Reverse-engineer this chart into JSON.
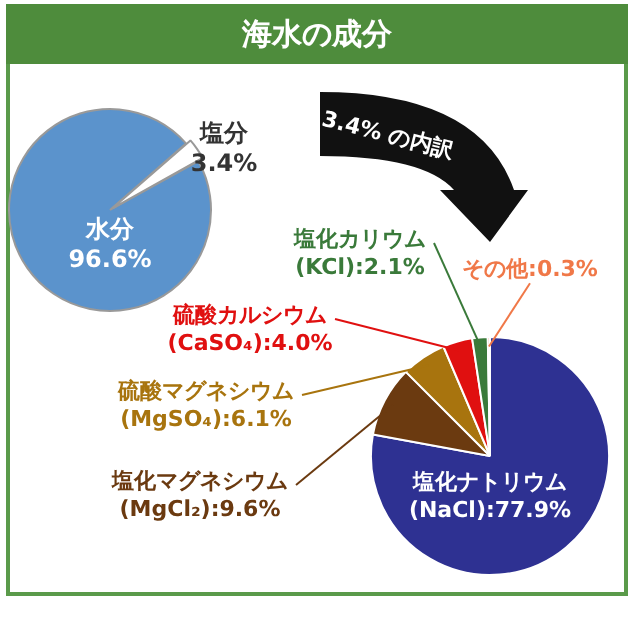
{
  "chart_data": [
    {
      "type": "pie",
      "title": "海水の成分",
      "categories": [
        "水分",
        "塩分"
      ],
      "values": [
        96.6,
        3.4
      ],
      "colors": [
        "#5b93cc",
        "#ffffff"
      ],
      "value_labels": [
        "96.6%",
        "3.4%"
      ]
    },
    {
      "type": "pie",
      "annotations": [
        "3.4% の内訳"
      ],
      "categories": [
        "塩化ナトリウム\n(NaCl)",
        "塩化マグネシウム\n(MgCl₂)",
        "硫酸マグネシウム\n(MgSO₄)",
        "硫酸カルシウム\n(CaSO₄)",
        "塩化カリウム\n(KCl)",
        "その他"
      ],
      "values": [
        77.9,
        9.6,
        6.1,
        4.0,
        2.1,
        0.3
      ],
      "colors": [
        "#2e3192",
        "#6b3a10",
        "#a8740e",
        "#e01010",
        "#3a7a3a",
        "#f07848"
      ],
      "value_labels": [
        "77.9%",
        "9.6%",
        "6.1%",
        "4.0%",
        "2.1%",
        "0.3%"
      ]
    }
  ]
}
